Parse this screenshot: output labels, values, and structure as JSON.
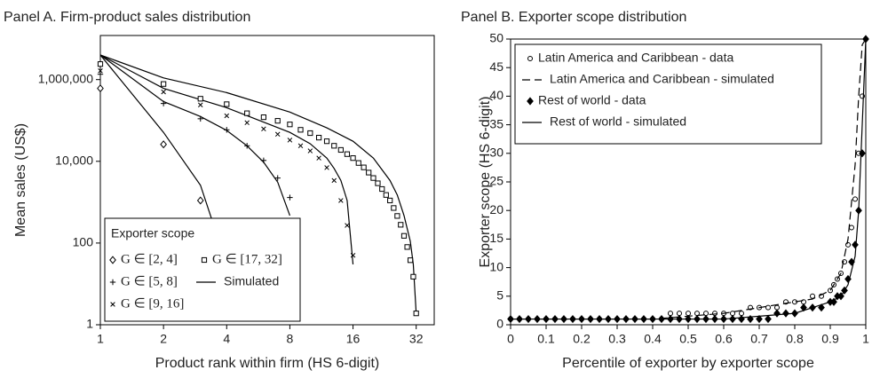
{
  "chart_data": [
    {
      "type": "line",
      "title": "Panel A. Firm-product sales distribution",
      "x_label": "Product rank within firm (HS 6-digit)",
      "y_label": "Mean sales (US$)",
      "x_log": true,
      "y_log": true,
      "xlim": [
        1,
        39
      ],
      "ylim": [
        1,
        12000000
      ],
      "xticks": [
        1,
        2,
        4,
        8,
        16,
        32
      ],
      "yticks": [
        1,
        100,
        {
          "value": 10000,
          "label": "10,000"
        },
        {
          "value": 1000000,
          "label": "1,000,000"
        }
      ],
      "legend_title": "Exporter scope",
      "legend_position": "lower left",
      "series": [
        {
          "name": "G ∈ [2, 4]",
          "marker": "diamond",
          "color": "#000000",
          "x": [
            1,
            2,
            3,
            4
          ],
          "values": [
            610000,
            26000,
            1100,
            35
          ]
        },
        {
          "name": "G ∈ [5, 8]",
          "marker": "plus",
          "color": "#000000",
          "x": [
            1,
            2,
            3,
            4,
            5,
            6,
            7,
            8
          ],
          "values": [
            1350000,
            260000,
            110000,
            59000,
            24000,
            10500,
            3900,
            1300
          ]
        },
        {
          "name": "G ∈ [9, 16]",
          "marker": "cross",
          "color": "#000000",
          "x": [
            1,
            2,
            3,
            4,
            5,
            6,
            7,
            8,
            9,
            10,
            11,
            12,
            13,
            14,
            15,
            16
          ],
          "values": [
            1640000,
            500000,
            240000,
            130000,
            88000,
            62000,
            46000,
            33000,
            24000,
            18000,
            12000,
            7000,
            3400,
            1100,
            270,
            50
          ]
        },
        {
          "name": "G ∈ [17, 32]",
          "marker": "square",
          "color": "#000000",
          "x": [
            1,
            2,
            3,
            4,
            5,
            6,
            7,
            8,
            9,
            10,
            11,
            12,
            13,
            14,
            15,
            16,
            17,
            18,
            19,
            20,
            21,
            22,
            23,
            24,
            25,
            26,
            27,
            28,
            29,
            30,
            31,
            32
          ],
          "values": [
            2400000,
            780000,
            340000,
            250000,
            150000,
            120000,
            98000,
            80000,
            59000,
            49000,
            38000,
            31000,
            24000,
            19000,
            15000,
            12000,
            9100,
            7100,
            5300,
            3900,
            2900,
            2100,
            1500,
            1100,
            720,
            460,
            280,
            150,
            80,
            38,
            15,
            1.9
          ]
        }
      ],
      "simulated": {
        "name": "Simulated",
        "color": "#000000",
        "lines": [
          {
            "x": [
              1,
              2,
              3,
              4
            ],
            "values": [
              4000000,
              51000,
              2600,
              30
            ]
          },
          {
            "x": [
              1,
              2,
              3,
              4,
              5,
              6,
              7,
              8
            ],
            "values": [
              4000000,
              290000,
              125000,
              57000,
              24000,
              9500,
              3100,
              470
            ]
          },
          {
            "x": [
              1,
              2,
              4,
              8,
              10,
              12,
              13,
              14,
              15,
              16
            ],
            "values": [
              4000000,
              610000,
              205000,
              51000,
              27000,
              12000,
              6700,
              3400,
              1100,
              30
            ]
          },
          {
            "x": [
              1,
              2,
              4,
              8,
              12,
              16,
              20,
              24,
              26,
              28,
              30,
              31,
              32
            ],
            "values": [
              4000000,
              1100000,
              480000,
              160000,
              66000,
              31000,
              12000,
              3400,
              1500,
              470,
              110,
              30,
              1.9
            ]
          }
        ]
      }
    },
    {
      "type": "line",
      "title": "Panel B. Exporter scope distribution",
      "x_label": "Percentile of exporter by exporter scope",
      "y_label": "Exporter scope (HS 6-digit)",
      "xlim": [
        0,
        1
      ],
      "ylim": [
        0,
        50
      ],
      "xticks": [
        0,
        0.1,
        0.2,
        0.3,
        0.4,
        0.5,
        0.6,
        0.7,
        0.8,
        0.9,
        1
      ],
      "yticks": [
        0,
        5,
        10,
        15,
        20,
        25,
        30,
        35,
        40,
        45,
        50
      ],
      "legend_position": "upper left",
      "series": [
        {
          "name": "Latin America and Caribbean - data",
          "marker": "circle",
          "color": "#000000",
          "x": [
            0,
            0.025,
            0.05,
            0.075,
            0.1,
            0.125,
            0.15,
            0.175,
            0.2,
            0.225,
            0.25,
            0.275,
            0.3,
            0.325,
            0.35,
            0.375,
            0.4,
            0.425,
            0.45,
            0.475,
            0.5,
            0.525,
            0.55,
            0.575,
            0.6,
            0.625,
            0.65,
            0.675,
            0.7,
            0.725,
            0.75,
            0.775,
            0.8,
            0.825,
            0.85,
            0.875,
            0.9,
            0.91,
            0.92,
            0.93,
            0.94,
            0.95,
            0.96,
            0.97,
            0.98,
            0.99,
            1
          ],
          "values": [
            1,
            1,
            1,
            1,
            1,
            1,
            1,
            1,
            1,
            1,
            1,
            1,
            1,
            1,
            1,
            1,
            1,
            1,
            2,
            2,
            2,
            2,
            2,
            2,
            2,
            2,
            2,
            3,
            3,
            3,
            3,
            4,
            4,
            4,
            5,
            5,
            6,
            7,
            8,
            9,
            11,
            14,
            17,
            22,
            30,
            40,
            50
          ]
        },
        {
          "name": "Latin America and Caribbean - simulated",
          "line_style": "dashed",
          "color": "#000000",
          "x": [
            0,
            0.4,
            0.6,
            0.7,
            0.8,
            0.85,
            0.9,
            0.93,
            0.95,
            0.97,
            0.98,
            0.99,
            1
          ],
          "values": [
            1,
            1,
            2,
            3,
            4,
            4.5,
            6,
            9,
            15,
            28,
            40,
            49,
            50
          ]
        },
        {
          "name": "Rest of world - data",
          "marker": "diamond-filled",
          "color": "#000000",
          "x": [
            0,
            0.025,
            0.05,
            0.075,
            0.1,
            0.125,
            0.15,
            0.175,
            0.2,
            0.225,
            0.25,
            0.275,
            0.3,
            0.325,
            0.35,
            0.375,
            0.4,
            0.425,
            0.45,
            0.475,
            0.5,
            0.525,
            0.55,
            0.575,
            0.6,
            0.625,
            0.65,
            0.675,
            0.7,
            0.725,
            0.75,
            0.775,
            0.8,
            0.825,
            0.85,
            0.875,
            0.9,
            0.91,
            0.92,
            0.93,
            0.94,
            0.95,
            0.96,
            0.97,
            0.98,
            0.99,
            1
          ],
          "values": [
            1,
            1,
            1,
            1,
            1,
            1,
            1,
            1,
            1,
            1,
            1,
            1,
            1,
            1,
            1,
            1,
            1,
            1,
            1,
            1,
            1,
            1,
            1,
            1,
            1,
            1,
            1,
            1,
            1,
            1,
            2,
            2,
            2,
            3,
            3,
            3,
            4,
            4,
            5,
            5,
            6,
            8,
            11,
            14,
            20,
            30,
            50
          ]
        },
        {
          "name": "Rest of world - simulated",
          "line_style": "solid",
          "color": "#000000",
          "x": [
            0,
            0.6,
            0.7,
            0.8,
            0.85,
            0.9,
            0.93,
            0.95,
            0.97,
            0.98,
            0.99,
            1
          ],
          "values": [
            1,
            1,
            1.5,
            2,
            3,
            4,
            5,
            7,
            12,
            20,
            35,
            50
          ]
        }
      ]
    }
  ]
}
